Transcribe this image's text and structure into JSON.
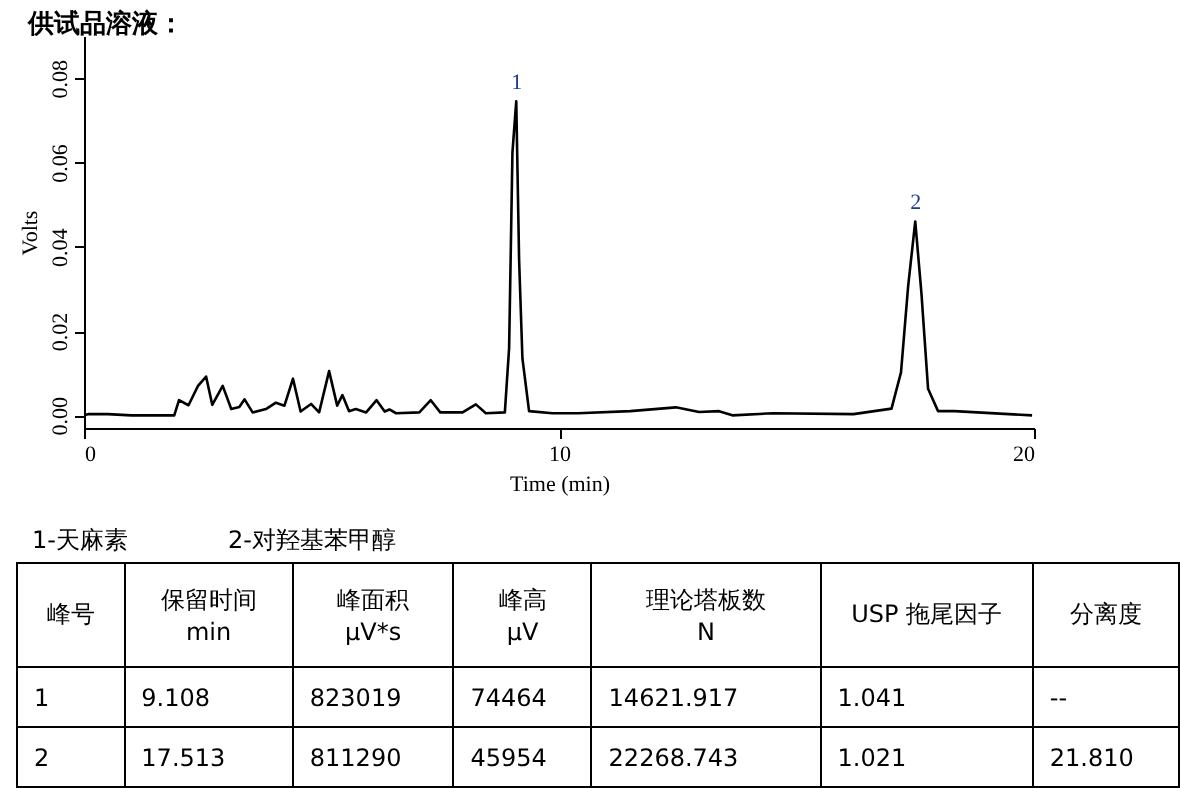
{
  "chart_data": {
    "type": "line",
    "title": "供试品溶液：",
    "xlabel": "Time (min)",
    "ylabel": "Volts",
    "xlim": [
      0,
      20
    ],
    "xticks": [
      0,
      10,
      20
    ],
    "ylim": [
      -0.003,
      0.09
    ],
    "yticks": [
      {
        "value": 0,
        "label": "0.00"
      },
      {
        "value": 0.02,
        "label": "0.02"
      },
      {
        "value": 0.04,
        "label": "0.04"
      },
      {
        "value": 0.06,
        "label": "0.06"
      },
      {
        "value": 0.08,
        "label": "0.08"
      }
    ],
    "grid": false,
    "legend": false,
    "marker": "none",
    "line_style": "solid",
    "series": [
      {
        "color": "#000000",
        "x": [
          0,
          0.1,
          0.5,
          1.0,
          1.9,
          2.0,
          2.2,
          2.4,
          2.57,
          2.7,
          2.92,
          3.1,
          3.27,
          3.38,
          3.55,
          3.83,
          4.04,
          4.22,
          4.4,
          4.56,
          4.78,
          4.95,
          5.16,
          5.33,
          5.44,
          5.58,
          5.72,
          5.94,
          6.16,
          6.33,
          6.43,
          6.57,
          7.06,
          7.3,
          7.5,
          7.97,
          8.25,
          8.46,
          8.86,
          8.95,
          9.02,
          9.1,
          9.16,
          9.23,
          9.37,
          9.86,
          10.4,
          11.5,
          12.46,
          12.95,
          13.37,
          13.65,
          14.5,
          16.2,
          17.0,
          17.2,
          17.35,
          17.5,
          17.63,
          17.77,
          17.98,
          18.33,
          19.96
        ],
        "values": [
          0,
          0.0003,
          0.0003,
          0,
          0,
          0.0036,
          0.0024,
          0.007,
          0.0092,
          0.0025,
          0.007,
          0.0015,
          0.002,
          0.0038,
          0.0007,
          0.0015,
          0.003,
          0.0023,
          0.0087,
          0.0009,
          0.0027,
          0.0007,
          0.0105,
          0.0023,
          0.0048,
          0.001,
          0.0015,
          0.0007,
          0.0036,
          0.0009,
          0.0014,
          0.0005,
          0.0007,
          0.0036,
          0.0007,
          0.0007,
          0.0026,
          0.0005,
          0.0007,
          0.016,
          0.0624,
          0.0745,
          0.0369,
          0.0135,
          0.001,
          0.0005,
          0.0005,
          0.001,
          0.0019,
          0.0008,
          0.001,
          0,
          0.0005,
          0.0003,
          0.0016,
          0.0102,
          0.0306,
          0.046,
          0.029,
          0.0063,
          0.001,
          0.001,
          0
        ]
      }
    ],
    "annotations": [
      {
        "text": "1",
        "x": 9.108,
        "y": 0.0745
      },
      {
        "text": "2",
        "x": 17.513,
        "y": 0.046
      },
      "1-天麻素",
      "2-对羟基苯甲醇",
      "峰号",
      "保留时间\nmin",
      "峰面积\nμV*s",
      "峰高\nμV",
      "理论塔板数\nN",
      "USP 拖尾因子",
      "分离度",
      "1",
      "9.108",
      "823019",
      "74464",
      "14621.917",
      "1.041",
      "--",
      "2",
      "17.513",
      "811290",
      "45954",
      "22268.743",
      "1.021",
      "21.810"
    ]
  }
}
